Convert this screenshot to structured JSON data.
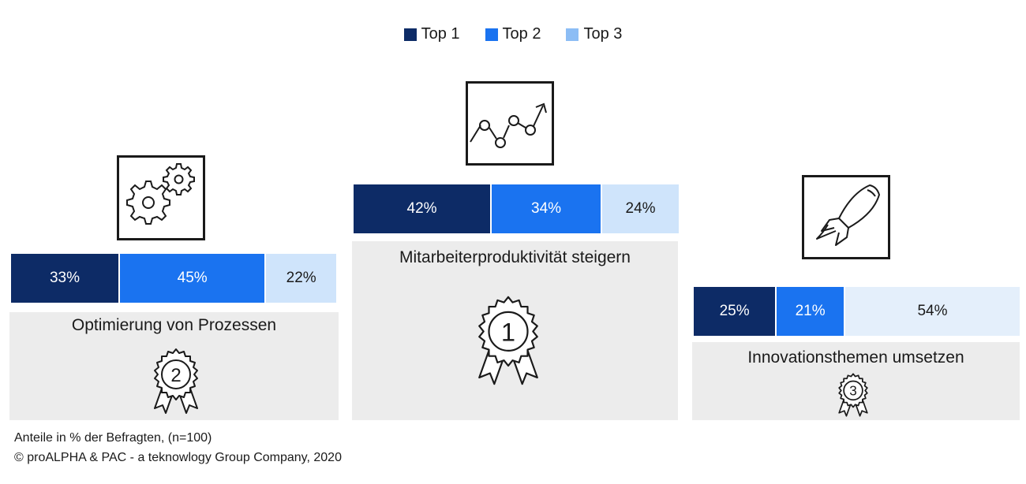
{
  "chart_data": {
    "type": "bar",
    "orientation": "horizontal-stacked",
    "legend_position": "top-center",
    "series": [
      {
        "name": "Top 1",
        "color": "#0d2b66"
      },
      {
        "name": "Top 2",
        "color": "#1a73f0"
      },
      {
        "name": "Top 3",
        "color": "#cfe4fb"
      }
    ],
    "legend_swatch_colors": [
      "#0d2b66",
      "#1a73f0",
      "#8cbdf5"
    ],
    "categories": [
      {
        "label": "Optimierung von Prozessen",
        "rank": "2",
        "icon": "gears-icon",
        "values": [
          33,
          45,
          22
        ],
        "labels": [
          "33%",
          "45%",
          "22%"
        ]
      },
      {
        "label": "Mitarbeiterproduktivität steigern",
        "rank": "1",
        "icon": "line-chart-icon",
        "values": [
          42,
          34,
          24
        ],
        "labels": [
          "42%",
          "34%",
          "24%"
        ]
      },
      {
        "label": "Innovationsthemen umsetzen",
        "rank": "3",
        "icon": "rocket-icon",
        "values": [
          25,
          21,
          54
        ],
        "labels": [
          "25%",
          "21%",
          "54%"
        ]
      }
    ]
  },
  "footnote": {
    "line1": "Anteile in % der Befragten, (n=100)",
    "line2": "© proALPHA & PAC - a teknowlogy Group Company, 2020"
  }
}
